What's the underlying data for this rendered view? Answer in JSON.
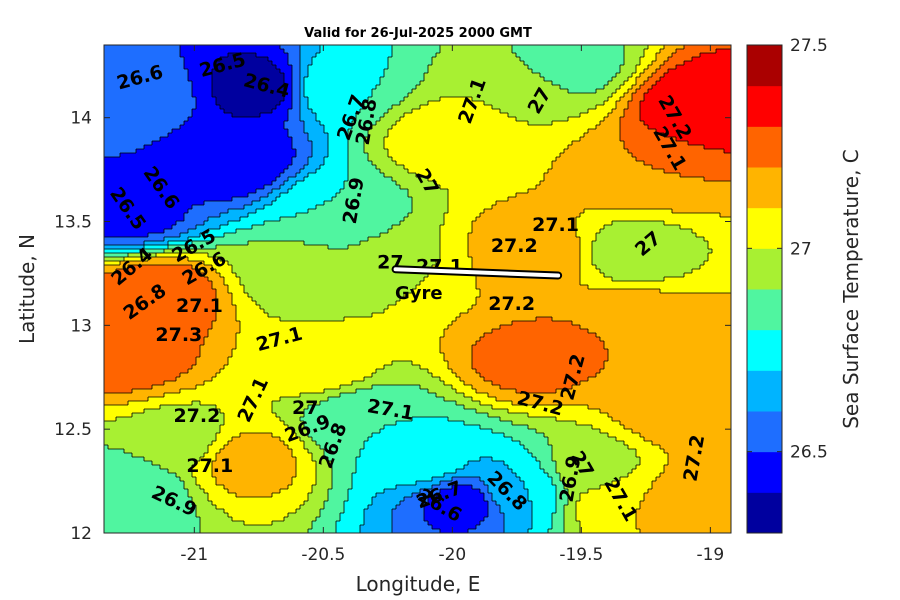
{
  "chart_data": {
    "type": "heatmap",
    "title": "Valid for 26-Jul-2025 2000 GMT",
    "xlabel": "Longitude, E",
    "ylabel": "Latitude, N",
    "colorbar_label": "Sea Surface Temperature, C",
    "xlim": [
      -21.35,
      -18.92
    ],
    "ylim": [
      12.0,
      14.35
    ],
    "x_ticks": [
      -21,
      -20.5,
      -20,
      -19.5,
      -19
    ],
    "x_tick_labels": [
      "-21",
      "-20.5",
      "-20",
      "-19.5",
      "-19"
    ],
    "y_ticks": [
      12,
      12.5,
      13,
      13.5,
      14
    ],
    "y_tick_labels": [
      "12",
      "12.5",
      "13",
      "13.5",
      "14"
    ],
    "clim": [
      26.3,
      27.5
    ],
    "colorbar_ticks": [
      26.5,
      27,
      27.5
    ],
    "colorbar_tick_labels": [
      "26.5",
      "27",
      "27.5"
    ],
    "levels": [
      26.3,
      26.4,
      26.5,
      26.6,
      26.7,
      26.8,
      26.9,
      27.0,
      27.1,
      27.2,
      27.3,
      27.4,
      27.5
    ],
    "level_colors": [
      "#00009f",
      "#0000ff",
      "#1e6eff",
      "#00b4ff",
      "#00ffff",
      "#50f5a0",
      "#a8f032",
      "#ffff00",
      "#ffb400",
      "#ff6400",
      "#ff0000",
      "#aa0000"
    ],
    "field_sources": [
      {
        "x": -21.15,
        "y": 13.15,
        "v": 27.3
      },
      {
        "x": -21.25,
        "y": 12.85,
        "v": 27.25
      },
      {
        "x": -20.75,
        "y": 14.15,
        "v": 26.35
      },
      {
        "x": -20.85,
        "y": 13.8,
        "v": 26.4
      },
      {
        "x": -21.2,
        "y": 14.1,
        "v": 26.55
      },
      {
        "x": -21.25,
        "y": 13.55,
        "v": 26.45
      },
      {
        "x": -20.45,
        "y": 13.55,
        "v": 26.8
      },
      {
        "x": -20.45,
        "y": 14.15,
        "v": 26.8
      },
      {
        "x": -20.05,
        "y": 13.9,
        "v": 27.05
      },
      {
        "x": -19.75,
        "y": 14.1,
        "v": 27.0
      },
      {
        "x": -19.55,
        "y": 14.25,
        "v": 26.85
      },
      {
        "x": -19.05,
        "y": 14.05,
        "v": 27.4
      },
      {
        "x": -19.25,
        "y": 13.75,
        "v": 27.2
      },
      {
        "x": -19.7,
        "y": 13.35,
        "v": 27.2
      },
      {
        "x": -19.95,
        "y": 13.2,
        "v": 27.1
      },
      {
        "x": -19.7,
        "y": 12.85,
        "v": 27.25
      },
      {
        "x": -19.3,
        "y": 13.0,
        "v": 27.2
      },
      {
        "x": -19.1,
        "y": 12.6,
        "v": 27.2
      },
      {
        "x": -19.05,
        "y": 12.15,
        "v": 27.2
      },
      {
        "x": -20.5,
        "y": 12.8,
        "v": 27.05
      },
      {
        "x": -20.35,
        "y": 12.55,
        "v": 26.8
      },
      {
        "x": -20.1,
        "y": 12.35,
        "v": 26.75
      },
      {
        "x": -19.95,
        "y": 12.15,
        "v": 26.45
      },
      {
        "x": -19.75,
        "y": 12.2,
        "v": 26.7
      },
      {
        "x": -19.45,
        "y": 12.3,
        "v": 26.95
      },
      {
        "x": -19.35,
        "y": 12.15,
        "v": 27.1
      },
      {
        "x": -20.8,
        "y": 12.35,
        "v": 27.15
      },
      {
        "x": -21.25,
        "y": 12.2,
        "v": 26.8
      },
      {
        "x": -21.05,
        "y": 12.45,
        "v": 26.95
      },
      {
        "x": -20.6,
        "y": 13.25,
        "v": 26.95
      },
      {
        "x": -20.2,
        "y": 13.3,
        "v": 26.95
      },
      {
        "x": -19.3,
        "y": 13.35,
        "v": 26.95
      }
    ],
    "contour_labels": [
      {
        "text": "26.6",
        "x": -21.21,
        "y": 14.19,
        "rot": -15
      },
      {
        "text": "26.5",
        "x": -20.89,
        "y": 14.25,
        "rot": -15
      },
      {
        "text": "26.4",
        "x": -20.72,
        "y": 14.15,
        "rot": 15
      },
      {
        "text": "26.7",
        "x": -20.39,
        "y": 14.0,
        "rot": -70
      },
      {
        "text": "26.8",
        "x": -20.33,
        "y": 13.98,
        "rot": -80
      },
      {
        "text": "27.1",
        "x": -19.92,
        "y": 14.08,
        "rot": -70
      },
      {
        "text": "27",
        "x": -19.66,
        "y": 14.08,
        "rot": -60
      },
      {
        "text": "27.2",
        "x": -19.14,
        "y": 14.0,
        "rot": 60
      },
      {
        "text": "27.1",
        "x": -19.16,
        "y": 13.85,
        "rot": 60
      },
      {
        "text": "26.6",
        "x": -21.13,
        "y": 13.66,
        "rot": 55
      },
      {
        "text": "26.5",
        "x": -21.26,
        "y": 13.56,
        "rot": 55
      },
      {
        "text": "26.9",
        "x": -20.38,
        "y": 13.6,
        "rot": -80
      },
      {
        "text": "27",
        "x": -20.1,
        "y": 13.69,
        "rot": 60
      },
      {
        "text": "27.1",
        "x": -19.6,
        "y": 13.48,
        "rot": 0
      },
      {
        "text": "27.2",
        "x": -19.76,
        "y": 13.38,
        "rot": 0
      },
      {
        "text": "27",
        "x": -19.24,
        "y": 13.39,
        "rot": -40
      },
      {
        "text": "26.5",
        "x": -21.0,
        "y": 13.38,
        "rot": -30
      },
      {
        "text": "26.4",
        "x": -21.24,
        "y": 13.28,
        "rot": -40
      },
      {
        "text": "26.6",
        "x": -20.96,
        "y": 13.27,
        "rot": -30
      },
      {
        "text": "26.8",
        "x": -21.19,
        "y": 13.11,
        "rot": -35
      },
      {
        "text": "27.1",
        "x": -20.98,
        "y": 13.09,
        "rot": 0
      },
      {
        "text": "27.2",
        "x": -19.77,
        "y": 13.1,
        "rot": 0
      },
      {
        "text": "27.3",
        "x": -21.06,
        "y": 12.95,
        "rot": 0
      },
      {
        "text": "27.1",
        "x": -20.67,
        "y": 12.93,
        "rot": -15
      },
      {
        "text": "27.2",
        "x": -19.53,
        "y": 12.75,
        "rot": -75
      },
      {
        "text": "27.2",
        "x": -19.66,
        "y": 12.62,
        "rot": 15
      },
      {
        "text": "27.1",
        "x": -20.24,
        "y": 12.59,
        "rot": 10
      },
      {
        "text": "27.1",
        "x": -20.77,
        "y": 12.64,
        "rot": -65
      },
      {
        "text": "27",
        "x": -20.57,
        "y": 12.6,
        "rot": 0
      },
      {
        "text": "27.2",
        "x": -20.99,
        "y": 12.56,
        "rot": 0
      },
      {
        "text": "26.9",
        "x": -20.56,
        "y": 12.5,
        "rot": -20
      },
      {
        "text": "26.8",
        "x": -20.46,
        "y": 12.42,
        "rot": -70
      },
      {
        "text": "27.1",
        "x": -20.94,
        "y": 12.32,
        "rot": 0
      },
      {
        "text": "26.9",
        "x": -21.08,
        "y": 12.15,
        "rot": 25
      },
      {
        "text": "26.7",
        "x": -20.05,
        "y": 12.18,
        "rot": -20
      },
      {
        "text": "26.6",
        "x": -20.05,
        "y": 12.13,
        "rot": 30
      },
      {
        "text": "26.8",
        "x": -19.79,
        "y": 12.2,
        "rot": 45
      },
      {
        "text": "26.9",
        "x": -19.54,
        "y": 12.26,
        "rot": -80
      },
      {
        "text": "27",
        "x": -19.5,
        "y": 12.33,
        "rot": 60
      },
      {
        "text": "27.1",
        "x": -19.35,
        "y": 12.16,
        "rot": 60
      },
      {
        "text": "27.2",
        "x": -19.06,
        "y": 12.36,
        "rot": -80
      },
      {
        "text": "27.1",
        "x": -20.05,
        "y": 13.28,
        "rot": 0
      },
      {
        "text": "27",
        "x": -20.24,
        "y": 13.3,
        "rot": 0
      }
    ],
    "annotation": {
      "text": "Gyre",
      "x": -20.13,
      "y": 13.15
    },
    "track": [
      [
        -20.22,
        13.27
      ],
      [
        -19.59,
        13.24
      ]
    ]
  }
}
